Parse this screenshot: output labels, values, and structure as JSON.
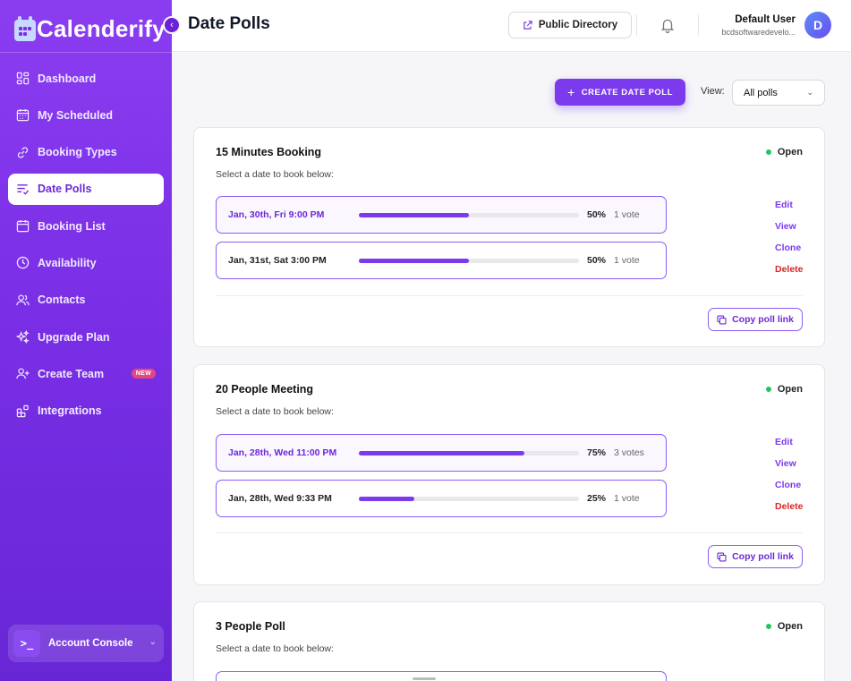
{
  "brand": {
    "name": "Calenderify"
  },
  "colors": {
    "accent": "#7c3aed",
    "sidebar_top": "#8b3df0",
    "sidebar_bottom": "#6726d6",
    "open_status": "#22c55e",
    "delete": "#dc2626",
    "new_badge": "#e5467d"
  },
  "sidebar": {
    "items": [
      {
        "label": "Dashboard",
        "icon": "dashboard-icon"
      },
      {
        "label": "My Scheduled",
        "icon": "calendar-icon"
      },
      {
        "label": "Booking Types",
        "icon": "link-icon"
      },
      {
        "label": "Date Polls",
        "icon": "poll-icon",
        "active": true
      },
      {
        "label": "Booking List",
        "icon": "calendar-list-icon"
      },
      {
        "label": "Availability",
        "icon": "clock-icon"
      },
      {
        "label": "Contacts",
        "icon": "users-icon"
      },
      {
        "label": "Upgrade Plan",
        "icon": "sparkle-icon"
      },
      {
        "label": "Create Team",
        "icon": "user-plus-icon",
        "badge": "NEW"
      },
      {
        "label": "Integrations",
        "icon": "integrations-icon"
      }
    ],
    "account_console": "Account Console",
    "account_icon": ">_"
  },
  "header": {
    "title": "Date Polls",
    "public_directory": "Public Directory",
    "user_name": "Default User",
    "user_email": "bcdsoftwaredevelo...",
    "avatar_letter": "D"
  },
  "toolbar": {
    "create_label": "CREATE DATE POLL",
    "view_label": "View:",
    "view_value": "All polls"
  },
  "polls": [
    {
      "title": "15 Minutes Booking",
      "status": "Open",
      "subtitle": "Select a date to book below:",
      "options": [
        {
          "date": "Jan, 30th, Fri 9:00 PM",
          "percent": 50,
          "percent_label": "50%",
          "votes": "1 vote",
          "selected": true
        },
        {
          "date": "Jan, 31st, Sat 3:00 PM",
          "percent": 50,
          "percent_label": "50%",
          "votes": "1 vote",
          "selected": false
        }
      ],
      "actions": {
        "edit": "Edit",
        "view": "View",
        "clone": "Clone",
        "delete": "Delete"
      },
      "copy_link": "Copy poll link"
    },
    {
      "title": "20 People Meeting",
      "status": "Open",
      "subtitle": "Select a date to book below:",
      "options": [
        {
          "date": "Jan, 28th, Wed 11:00 PM",
          "percent": 75,
          "percent_label": "75%",
          "votes": "3 votes",
          "selected": true
        },
        {
          "date": "Jan, 28th, Wed 9:33 PM",
          "percent": 25,
          "percent_label": "25%",
          "votes": "1 vote",
          "selected": false
        }
      ],
      "actions": {
        "edit": "Edit",
        "view": "View",
        "clone": "Clone",
        "delete": "Delete"
      },
      "copy_link": "Copy poll link"
    },
    {
      "title": "3 People Poll",
      "status": "Open",
      "subtitle": "Select a date to book below:"
    }
  ]
}
